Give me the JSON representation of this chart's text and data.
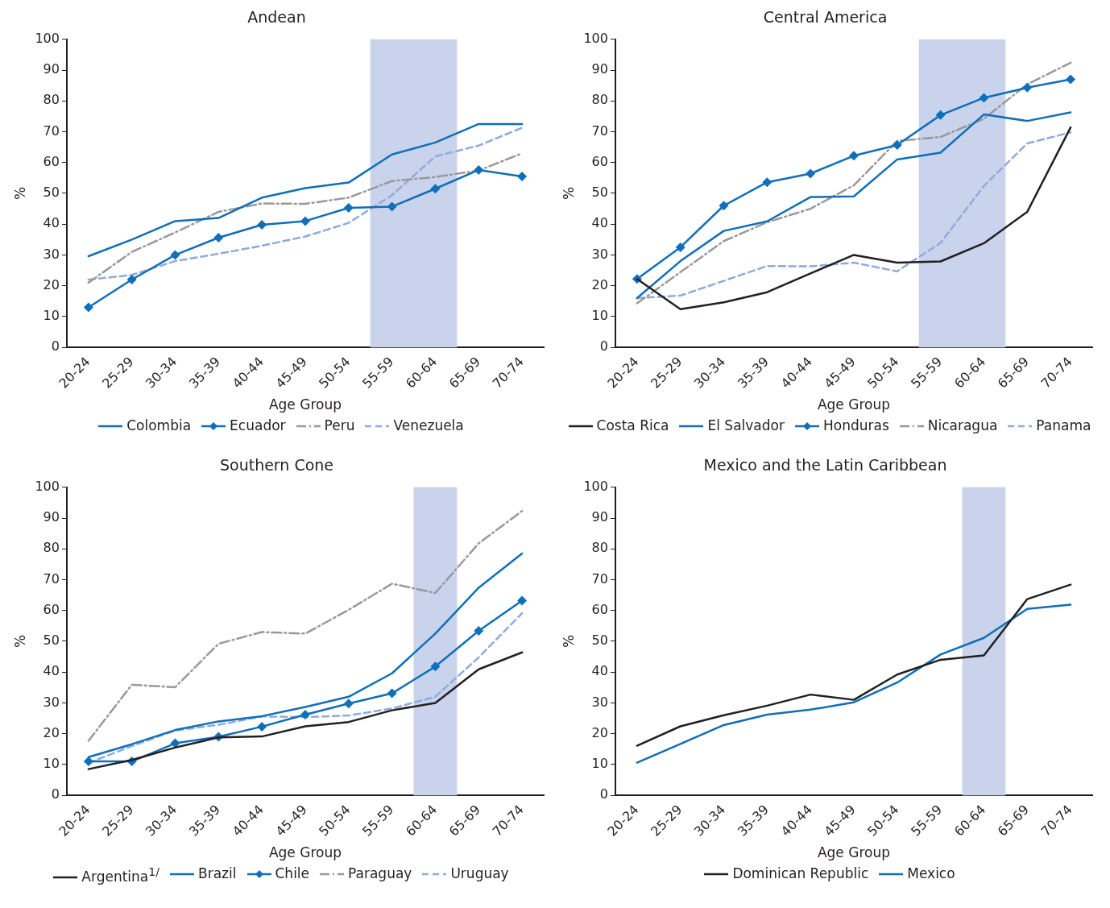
{
  "chart_data": [
    {
      "type": "line",
      "title": "Andean",
      "xlabel": "Age Group",
      "ylabel": "%",
      "categories": [
        "20-24",
        "25-29",
        "30-34",
        "35-39",
        "40-44",
        "45-49",
        "50-54",
        "55-59",
        "60-64",
        "65-69",
        "70-74"
      ],
      "ylim": [
        0,
        100
      ],
      "yticks": [
        0,
        10,
        20,
        30,
        40,
        50,
        60,
        70,
        80,
        90,
        100
      ],
      "grid": false,
      "legend": "bottom",
      "bands": [
        {
          "axis": "x",
          "from": "55-59",
          "to": "60-64",
          "color": "#c9d3ec"
        }
      ],
      "series": [
        {
          "name": "Colombia",
          "color": "#0f6fba",
          "line_style": "solid",
          "marker": "none",
          "values": [
            29.6,
            35,
            41,
            42,
            48.6,
            51.7,
            53.5,
            62.6,
            66.5,
            72.5,
            72.5
          ]
        },
        {
          "name": "Ecuador",
          "color": "#0f6fba",
          "line_style": "solid",
          "marker": "diamond",
          "values": [
            13,
            22,
            30,
            35.6,
            39.8,
            41,
            45.3,
            45.7,
            51.5,
            57.6,
            55.5
          ]
        },
        {
          "name": "Peru",
          "color": "#999999",
          "line_style": "dashdot",
          "marker": "none",
          "values": [
            21,
            31,
            37.3,
            44,
            46.7,
            46.6,
            48.6,
            54,
            55.3,
            57.4,
            63
          ]
        },
        {
          "name": "Venezuela",
          "color": "#8faadc",
          "line_style": "dashed",
          "marker": "none",
          "values": [
            22,
            23.5,
            28,
            30.4,
            33,
            36,
            40.4,
            49.4,
            62,
            65.5,
            71.3
          ]
        }
      ]
    },
    {
      "type": "line",
      "title": "Central America",
      "xlabel": "Age Group",
      "ylabel": "%",
      "categories": [
        "20-24",
        "25-29",
        "30-34",
        "35-39",
        "40-44",
        "45-49",
        "50-54",
        "55-59",
        "60-64",
        "65-69",
        "70-74"
      ],
      "ylim": [
        0,
        100
      ],
      "yticks": [
        0,
        10,
        20,
        30,
        40,
        50,
        60,
        70,
        80,
        90,
        100
      ],
      "grid": false,
      "legend": "bottom",
      "bands": [
        {
          "axis": "x",
          "from": "55-59",
          "to": "60-64",
          "color": "#c9d3ec"
        }
      ],
      "series": [
        {
          "name": "Costa Rica",
          "color": "#231f20",
          "line_style": "solid",
          "marker": "none",
          "values": [
            22.2,
            12.4,
            14.6,
            17.9,
            24,
            30,
            27.5,
            27.9,
            33.8,
            44,
            71.4
          ]
        },
        {
          "name": "El Salvador",
          "color": "#0f6fba",
          "line_style": "solid",
          "marker": "none",
          "values": [
            16,
            28,
            37.8,
            40.9,
            48.8,
            49,
            61,
            63.2,
            75.6,
            73.5,
            76.3
          ]
        },
        {
          "name": "Honduras",
          "color": "#0f6fba",
          "line_style": "solid",
          "marker": "diamond",
          "values": [
            22.2,
            32.5,
            46,
            53.6,
            56.4,
            62.2,
            65.7,
            75.4,
            81,
            84.3,
            87
          ]
        },
        {
          "name": "Nicaragua",
          "color": "#999999",
          "line_style": "dashdot",
          "marker": "none",
          "values": [
            14.3,
            24.4,
            34.5,
            40.6,
            45,
            52.6,
            67,
            68.3,
            74.2,
            85.4,
            92.4
          ]
        },
        {
          "name": "Panama",
          "color": "#8faadc",
          "line_style": "dashed",
          "marker": "none",
          "values": [
            16,
            16.8,
            21.6,
            26.4,
            26.3,
            27.5,
            24.7,
            33.9,
            52.4,
            66.2,
            69.8
          ]
        }
      ]
    },
    {
      "type": "line",
      "title": "Southern Cone",
      "xlabel": "Age Group",
      "ylabel": "%",
      "categories": [
        "20-24",
        "25-29",
        "30-34",
        "35-39",
        "40-44",
        "45-49",
        "50-54",
        "55-59",
        "60-64",
        "65-69",
        "70-74"
      ],
      "ylim": [
        0,
        100
      ],
      "yticks": [
        0,
        10,
        20,
        30,
        40,
        50,
        60,
        70,
        80,
        90,
        100
      ],
      "grid": false,
      "legend": "bottom",
      "bands": [
        {
          "axis": "x",
          "from": "60-64",
          "to": "60-64",
          "color": "#c9d3ec"
        }
      ],
      "series": [
        {
          "name": "Argentina$^{1/}$",
          "color": "#231f20",
          "line_style": "solid",
          "marker": "none",
          "values": [
            8.5,
            11.5,
            15.5,
            18.8,
            19.1,
            22.4,
            23.8,
            27.6,
            30,
            40.9,
            46.4
          ]
        },
        {
          "name": "Brazil",
          "color": "#0f6fba",
          "line_style": "solid",
          "marker": "none",
          "values": [
            12.4,
            16.6,
            21.2,
            24,
            25.7,
            28.7,
            32,
            39.6,
            52.5,
            67.4,
            78.5
          ]
        },
        {
          "name": "Chile",
          "color": "#0f6fba",
          "line_style": "solid",
          "marker": "diamond",
          "values": [
            11,
            11,
            16.9,
            19,
            22.3,
            26.2,
            29.8,
            33.1,
            41.8,
            53.4,
            63.2
          ]
        },
        {
          "name": "Paraguay",
          "color": "#999999",
          "line_style": "dashdot",
          "marker": "none",
          "values": [
            17.7,
            35.9,
            35.1,
            49.2,
            53,
            52.5,
            60.2,
            68.7,
            65.7,
            81.8,
            92.3
          ]
        },
        {
          "name": "Uruguay",
          "color": "#8faadc",
          "line_style": "dashed",
          "marker": "none",
          "values": [
            10.5,
            16,
            21,
            22.9,
            25.6,
            25.4,
            25.9,
            28.2,
            32,
            44.8,
            59.1
          ]
        }
      ]
    },
    {
      "type": "line",
      "title": "Mexico and the Latin Caribbean",
      "xlabel": "Age Group",
      "ylabel": "%",
      "categories": [
        "20-24",
        "25-29",
        "30-34",
        "35-39",
        "40-44",
        "45-49",
        "50-54",
        "55-59",
        "60-64",
        "65-69",
        "70-74"
      ],
      "ylim": [
        0,
        100
      ],
      "yticks": [
        0,
        10,
        20,
        30,
        40,
        50,
        60,
        70,
        80,
        90,
        100
      ],
      "grid": false,
      "legend": "bottom",
      "bands": [
        {
          "axis": "x",
          "from": "60-64",
          "to": "60-64",
          "color": "#c9d3ec"
        }
      ],
      "series": [
        {
          "name": "Dominican Republic",
          "color": "#231f20",
          "line_style": "solid",
          "marker": "none",
          "values": [
            16.1,
            22.4,
            26,
            29.1,
            32.7,
            31,
            39.2,
            44,
            45.4,
            63.7,
            68.4
          ]
        },
        {
          "name": "Mexico",
          "color": "#0f6fba",
          "line_style": "solid",
          "marker": "none",
          "values": [
            10.6,
            16.7,
            22.8,
            26.2,
            27.8,
            30.2,
            36.6,
            45.7,
            51.1,
            60.5,
            61.9
          ]
        }
      ]
    }
  ]
}
